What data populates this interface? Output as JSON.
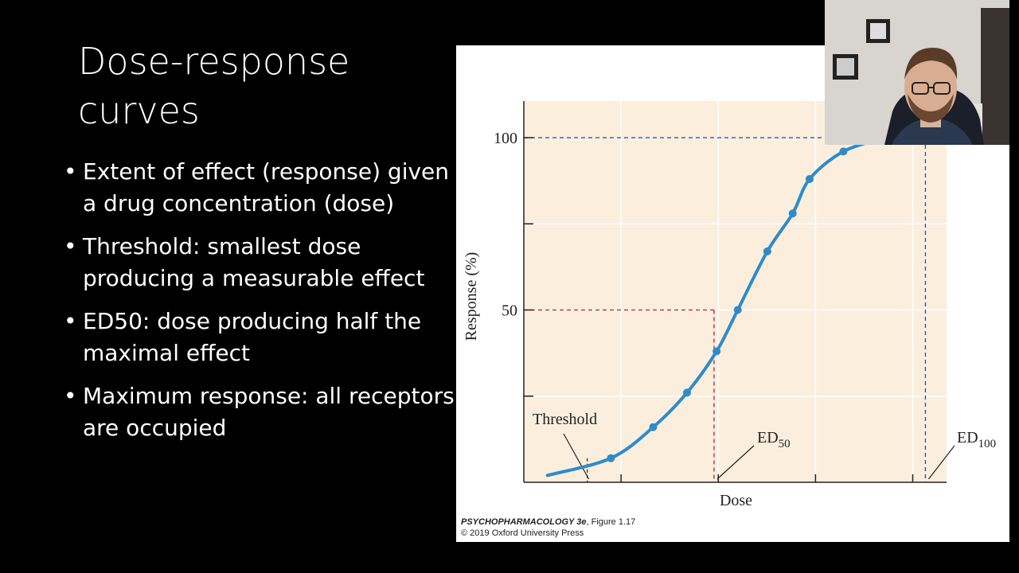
{
  "slide": {
    "title": "Dose-response curves",
    "bullets": [
      "Extent of effect (response) given a drug concentration (dose)",
      "Threshold: smallest dose producing a measurable effect",
      "ED50: dose producing half the maximal effect",
      "Maximum response: all receptors are occupied"
    ]
  },
  "figure": {
    "credit_book": "PSYCHOPHARMACOLOGY 3e",
    "credit_figure": ", Figure 1.17",
    "credit_copyright": "© 2019 Oxford University Press",
    "annotations": {
      "threshold": "Threshold",
      "ed50_main": "ED",
      "ed50_sub": "50",
      "ed100_main": "ED",
      "ed100_sub": "100"
    }
  },
  "chart_data": {
    "type": "line",
    "xlabel": "Dose",
    "ylabel": "Response (%)",
    "ylim": [
      0,
      100
    ],
    "yticks": [
      50,
      100
    ],
    "x": [
      0.0,
      0.15,
      0.25,
      0.33,
      0.4,
      0.45,
      0.52,
      0.58,
      0.62,
      0.7,
      0.8
    ],
    "y": [
      2,
      7,
      16,
      26,
      38,
      50,
      67,
      78,
      88,
      96,
      100
    ],
    "threshold_x": 0.15,
    "ed50_x": 0.45,
    "ed100_x": 0.95,
    "colors": {
      "curve": "#2e8bc9",
      "background": "#fbeedd",
      "ed50_line": "#c3153a",
      "ed100_line": "#2b4a8f"
    }
  }
}
